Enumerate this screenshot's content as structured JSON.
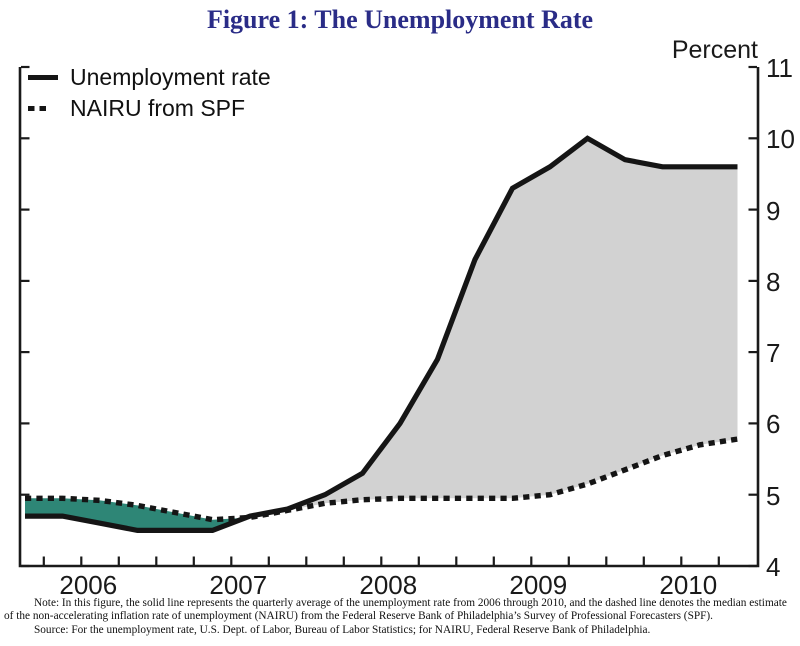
{
  "page": {
    "title": "Figure 1: The Unemployment Rate",
    "axis_unit_label": "Percent",
    "note_text": "Note: In this figure, the solid line represents the quarterly average of the unemployment rate from 2006 through 2010, and the dashed line denotes the median estimate of the non-accelerating inflation rate of unemployment (NAIRU) from the Federal Reserve Bank of Philadelphia’s Survey of Professional Forecasters (SPF).",
    "source_text": "Source: For the unemployment rate, U.S. Dept. of Labor, Bureau of Labor Statistics; for NAIRU, Federal Reserve Bank of Philadelphia."
  },
  "legend": {
    "items": [
      {
        "label": "Unemployment rate",
        "style": "solid"
      },
      {
        "label": "NAIRU from SPF",
        "style": "dashed"
      }
    ]
  },
  "chart_data": {
    "type": "line",
    "title": "Figure 1: The Unemployment Rate",
    "ylabel": "Percent",
    "x_unit": "quarter",
    "categories": [
      "2006Q1",
      "2006Q2",
      "2006Q3",
      "2006Q4",
      "2007Q1",
      "2007Q2",
      "2007Q3",
      "2007Q4",
      "2008Q1",
      "2008Q2",
      "2008Q3",
      "2008Q4",
      "2009Q1",
      "2009Q2",
      "2009Q3",
      "2009Q4",
      "2010Q1",
      "2010Q2",
      "2010Q3",
      "2010Q4"
    ],
    "series": [
      {
        "name": "Unemployment rate",
        "line_style": "solid",
        "values": [
          4.7,
          4.7,
          4.6,
          4.5,
          4.5,
          4.5,
          4.7,
          4.8,
          5.0,
          5.3,
          6.0,
          6.9,
          8.3,
          9.3,
          9.6,
          10.0,
          9.7,
          9.6,
          9.6,
          9.6
        ]
      },
      {
        "name": "NAIRU from SPF",
        "line_style": "dashed",
        "values": [
          4.95,
          4.95,
          4.92,
          4.85,
          4.75,
          4.65,
          4.68,
          4.78,
          4.88,
          4.93,
          4.95,
          4.95,
          4.95,
          4.95,
          5.0,
          5.15,
          5.35,
          5.55,
          5.7,
          5.78
        ]
      }
    ],
    "ylim": [
      4,
      11
    ],
    "yticks": [
      4,
      5,
      6,
      7,
      8,
      9,
      10,
      11
    ],
    "xtick_year_labels": [
      "2006",
      "2007",
      "2008",
      "2009",
      "2010"
    ],
    "grid": false,
    "legend_position": "top-left",
    "y_axis_side": "right",
    "colors": {
      "title": "#2a2c87",
      "line": "#151515",
      "axis": "#1a1a1a",
      "fill_unemployment_above_nairu": "#d2d2d2",
      "fill_unemployment_below_nairu": "#2e8676"
    }
  }
}
